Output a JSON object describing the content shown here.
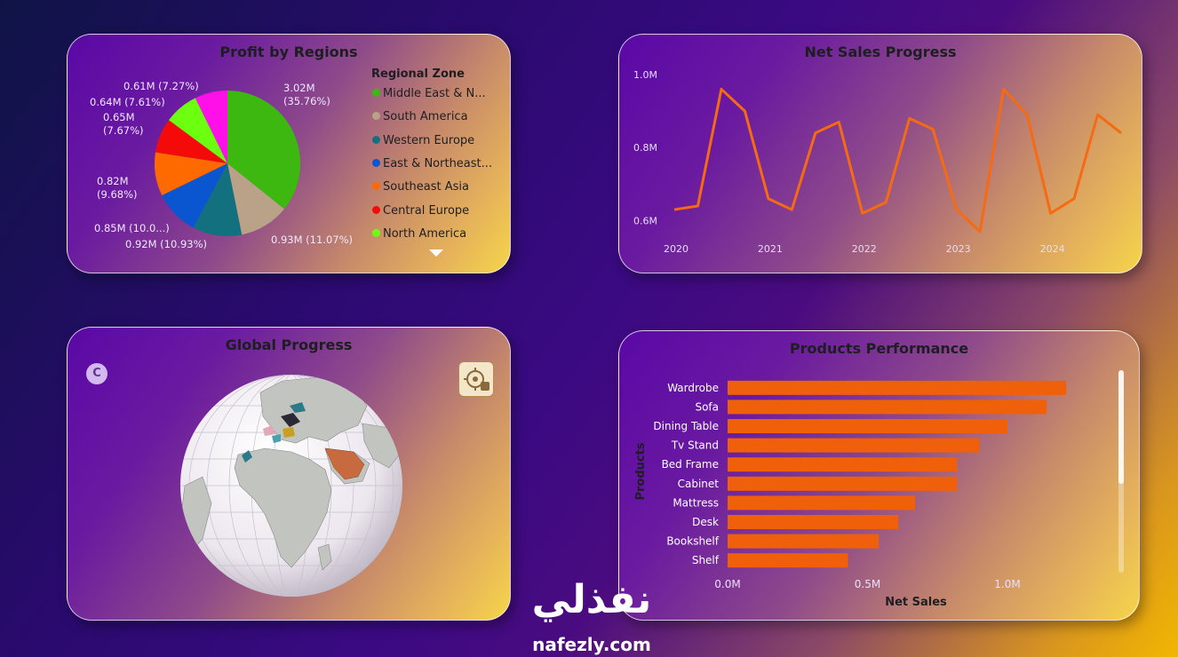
{
  "profit_card": {
    "title": "Profit by Regions",
    "legend_title": "Regional Zone",
    "pie_labels": [
      "3.02M (35.76%)",
      "0.93M (11.07%)",
      "0.92M (10.93%)",
      "0.85M (10.0...)",
      "0.82M (9.68%)",
      "0.65M (7.67%)",
      "0.64M (7.61%)",
      "0.61M (7.27%)"
    ]
  },
  "sales_card": {
    "title": "Net Sales Progress"
  },
  "globe_card": {
    "title": "Global Progress",
    "badge_letter": "C"
  },
  "products_card": {
    "title": "Products Performance"
  },
  "watermark": {
    "arabic": "نفذلي",
    "latin": "nafezly.com"
  },
  "chart_data": [
    {
      "type": "pie",
      "title": "Profit by Regions",
      "legend_title": "Regional Zone",
      "legend_placement": "right",
      "slices": [
        {
          "label": "Middle East & N...",
          "value": 3.02,
          "percent": 35.76,
          "color": "#3cb810"
        },
        {
          "label": "South America",
          "value": 0.93,
          "percent": 11.07,
          "color": "#b9a288"
        },
        {
          "label": "Western Europe",
          "value": 0.92,
          "percent": 10.93,
          "color": "#13707e"
        },
        {
          "label": "East & Northeast...",
          "value": 0.85,
          "percent": 10.0,
          "color": "#0a55d0"
        },
        {
          "label": "Southeast Asia",
          "value": 0.82,
          "percent": 9.68,
          "color": "#ff6a00"
        },
        {
          "label": "Central Europe",
          "value": 0.65,
          "percent": 7.67,
          "color": "#f50a0a"
        },
        {
          "label": "North America",
          "value": 0.64,
          "percent": 7.61,
          "color": "#6dff10"
        },
        {
          "label": "",
          "value": 0.61,
          "percent": 7.27,
          "color": "#ff10e8"
        }
      ]
    },
    {
      "type": "line",
      "title": "Net Sales Progress",
      "x_ticks": [
        "2020",
        "2021",
        "2022",
        "2023",
        "2024"
      ],
      "y_ticks": [
        "0.6M",
        "0.8M",
        "1.0M"
      ],
      "ylim": [
        0.55,
        1.0
      ],
      "xlim": [
        2020,
        2024.75
      ],
      "color": "#f56a12",
      "series": [
        {
          "x": [
            2020.0,
            2020.25,
            2020.5,
            2020.75,
            2021.0,
            2021.25,
            2021.5,
            2021.75,
            2022.0,
            2022.25,
            2022.5,
            2022.75,
            2023.0,
            2023.25,
            2023.5,
            2023.75,
            2024.0,
            2024.25,
            2024.5,
            2024.75
          ],
          "values": [
            0.63,
            0.64,
            0.96,
            0.9,
            0.66,
            0.63,
            0.84,
            0.87,
            0.62,
            0.65,
            0.88,
            0.85,
            0.63,
            0.57,
            0.96,
            0.89,
            0.62,
            0.66,
            0.89,
            0.84
          ]
        }
      ]
    },
    {
      "type": "bar",
      "orientation": "horizontal",
      "title": "Products Performance",
      "xlabel": "Net Sales",
      "ylabel": "Products",
      "x_ticks": [
        "0.0M",
        "0.5M",
        "1.0M"
      ],
      "xlim": [
        0,
        1.2
      ],
      "color": "#f0600a",
      "categories": [
        "Wardrobe",
        "Sofa",
        "Dining Table",
        "Tv Stand",
        "Bed Frame",
        "Cabinet",
        "Mattress",
        "Desk",
        "Bookshelf",
        "Shelf"
      ],
      "values": [
        1.21,
        1.14,
        1.0,
        0.9,
        0.82,
        0.82,
        0.67,
        0.61,
        0.54,
        0.43
      ]
    }
  ]
}
